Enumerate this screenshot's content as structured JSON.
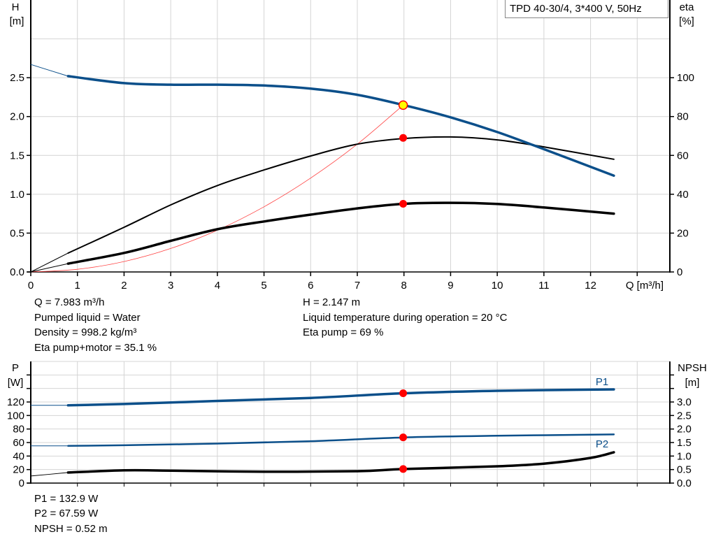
{
  "chart_data": [
    {
      "type": "line",
      "title": "TPD 40-30/4, 3*400 V, 50Hz",
      "xlabel": "Q [m³/h]",
      "ylabel_left": [
        "H",
        "[m]"
      ],
      "ylabel_right": [
        "eta",
        "[%]"
      ],
      "xlim": [
        0,
        13.7
      ],
      "ylim_left": [
        0,
        3.5
      ],
      "ylim_right": [
        0,
        140
      ],
      "x_ticks": [
        "0",
        "1",
        "2",
        "3",
        "4",
        "5",
        "6",
        "7",
        "8",
        "9",
        "10",
        "11",
        "12"
      ],
      "y_ticks_left": [
        "0.0",
        "0.5",
        "1.0",
        "1.5",
        "2.0",
        "2.5"
      ],
      "y_ticks_right": [
        "0",
        "20",
        "40",
        "60",
        "80",
        "100"
      ],
      "grid": true,
      "series": [
        {
          "key": "H",
          "axis": "left",
          "color": "#0b4f8a",
          "x": [
            0,
            0.8,
            2,
            3,
            4,
            5,
            6,
            7,
            8,
            9,
            10,
            11,
            12.5
          ],
          "y": [
            2.67,
            2.52,
            2.43,
            2.41,
            2.41,
            2.4,
            2.36,
            2.28,
            2.147,
            1.99,
            1.8,
            1.58,
            1.24
          ]
        },
        {
          "key": "eta_pump",
          "axis": "right",
          "color": "#000000",
          "x": [
            0,
            0.8,
            2,
            3,
            4,
            5,
            6,
            7,
            8,
            9,
            10,
            11,
            12.5
          ],
          "y": [
            0,
            9.7,
            23,
            34.5,
            44.5,
            52.5,
            59.7,
            65.8,
            68.7,
            69.5,
            68,
            64.4,
            58
          ]
        },
        {
          "key": "eta_pump_motor",
          "axis": "right",
          "color": "#000000",
          "x": [
            0,
            0.8,
            2,
            3,
            4,
            5,
            6,
            7,
            8,
            9,
            10,
            11,
            12.5
          ],
          "y": [
            0,
            4.3,
            9.8,
            16,
            22,
            26,
            29.5,
            32.7,
            35.1,
            35.6,
            35,
            33.2,
            30
          ]
        },
        {
          "key": "system_curve",
          "axis": "left",
          "color": "#ff4040",
          "x": [
            0,
            1,
            2,
            3,
            4,
            5,
            6,
            7,
            7.983
          ],
          "y": [
            0,
            0.034,
            0.134,
            0.302,
            0.537,
            0.839,
            1.208,
            1.645,
            2.147
          ]
        }
      ],
      "operating_point": {
        "q": 7.983,
        "h": 2.147,
        "eta_pump": 69,
        "eta_pump_motor": 35.1
      }
    },
    {
      "type": "line",
      "xlim": [
        0,
        13.7
      ],
      "ylabel_left": [
        "P",
        "[W]"
      ],
      "ylabel_right": [
        "NPSH",
        "[m]"
      ],
      "ylim_left": [
        0,
        180
      ],
      "ylim_right": [
        0,
        4.5
      ],
      "y_ticks_left": [
        "0",
        "20",
        "40",
        "60",
        "80",
        "100",
        "120"
      ],
      "y_ticks_right": [
        "0.0",
        "0.5",
        "1.0",
        "1.5",
        "2.0",
        "2.5",
        "3.0"
      ],
      "grid": true,
      "series": [
        {
          "key": "P1",
          "name": "P1",
          "axis": "left",
          "color": "#0b4f8a",
          "x": [
            0,
            0.8,
            2,
            4,
            6,
            8,
            10,
            12.5
          ],
          "y": [
            115,
            115,
            117,
            121.5,
            126,
            132.9,
            136.5,
            138.6
          ]
        },
        {
          "key": "P2",
          "name": "P2",
          "axis": "left",
          "color": "#0b4f8a",
          "x": [
            0,
            0.8,
            2,
            4,
            6,
            8,
            10,
            12.5
          ],
          "y": [
            55,
            55,
            56,
            58.5,
            62,
            67.59,
            70,
            72
          ]
        },
        {
          "key": "NPSH",
          "axis": "right",
          "color": "#000000",
          "x": [
            0,
            0.8,
            2,
            3,
            5,
            7,
            8,
            10,
            11,
            12,
            12.5
          ],
          "y": [
            0.26,
            0.39,
            0.47,
            0.46,
            0.42,
            0.44,
            0.52,
            0.62,
            0.72,
            0.93,
            1.14
          ]
        }
      ],
      "operating_point": {
        "q": 7.983,
        "p1": 132.9,
        "p2": 67.59,
        "npsh": 0.52
      }
    }
  ],
  "info": {
    "q": "Q = 7.983 m³/h",
    "liquid": "Pumped liquid = Water",
    "density": "Density = 998.2 kg/m³",
    "eta_pm": "Eta pump+motor = 35.1 %",
    "h": "H = 2.147 m",
    "temp": "Liquid temperature during operation = 20 °C",
    "eta_p": "Eta pump = 69 %",
    "p1": "P1 = 132.9 W",
    "p2": "P2 = 67.59 W",
    "npsh": "NPSH = 0.52 m"
  },
  "colors": {
    "grid": "#d4d4d4",
    "marker": "#ff0000",
    "op_marker": "#ffff00"
  }
}
